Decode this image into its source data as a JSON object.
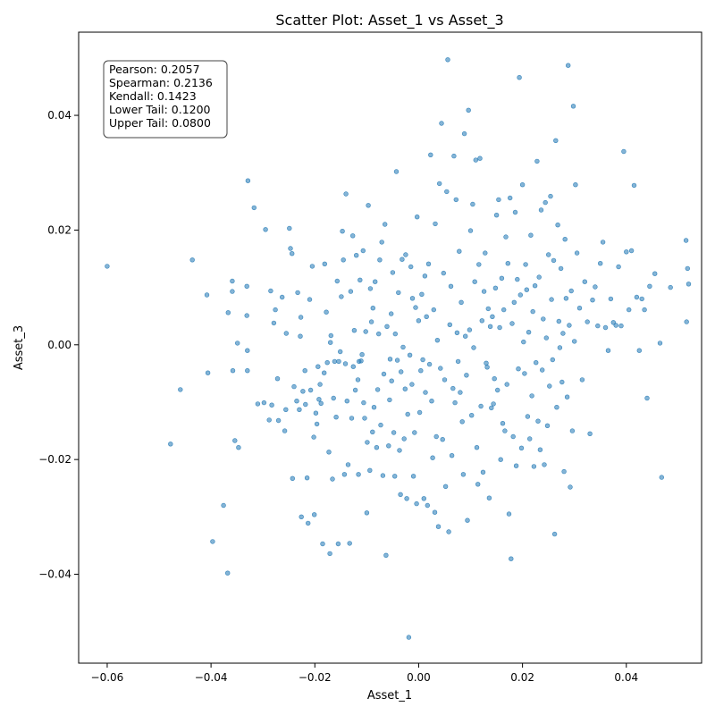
{
  "chart_data": {
    "type": "scatter",
    "title": "Scatter Plot: Asset_1 vs Asset_3",
    "xlabel": "Asset_1",
    "ylabel": "Asset_3",
    "xlim": [
      -0.0655,
      0.0545
    ],
    "ylim": [
      -0.0555,
      0.0545
    ],
    "xticks": [
      -0.06,
      -0.04,
      -0.02,
      0.0,
      0.02,
      0.04
    ],
    "xtick_labels": [
      "−0.06",
      "−0.04",
      "−0.02",
      "0.00",
      "0.02",
      "0.04"
    ],
    "yticks": [
      -0.04,
      -0.02,
      0.0,
      0.02,
      0.04
    ],
    "ytick_labels": [
      "−0.04",
      "−0.02",
      "0.00",
      "0.02",
      "0.04"
    ],
    "grid": false,
    "point_color": "#1f77b4",
    "stats_lines": [
      "Pearson: 0.2057",
      "Spearman: 0.2136",
      "Kendall: 0.1423",
      "Lower Tail: 0.1200",
      "Upper Tail: 0.0800"
    ],
    "points": [
      [
        -0.06,
        0.0137
      ],
      [
        -0.0478,
        -0.0173
      ],
      [
        -0.0459,
        -0.0078
      ],
      [
        -0.0436,
        0.0148
      ],
      [
        -0.0408,
        0.0087
      ],
      [
        -0.0406,
        -0.0049
      ],
      [
        -0.0397,
        -0.0343
      ],
      [
        -0.0376,
        -0.028
      ],
      [
        -0.0368,
        -0.0398
      ],
      [
        -0.0367,
        0.0056
      ],
      [
        -0.0359,
        0.0111
      ],
      [
        -0.0359,
        0.0093
      ],
      [
        -0.0358,
        -0.0045
      ],
      [
        -0.0354,
        -0.0167
      ],
      [
        -0.0349,
        0.0003
      ],
      [
        -0.0347,
        -0.0179
      ],
      [
        -0.033,
        -0.0045
      ],
      [
        -0.0331,
        0.0102
      ],
      [
        -0.0331,
        0.0051
      ],
      [
        -0.0329,
        0.0286
      ],
      [
        -0.033,
        -0.001
      ],
      [
        -0.0317,
        0.0239
      ],
      [
        -0.031,
        -0.0103
      ],
      [
        -0.0298,
        -0.0101
      ],
      [
        -0.0295,
        0.0201
      ],
      [
        -0.0288,
        -0.0131
      ],
      [
        -0.0285,
        0.0094
      ],
      [
        -0.0283,
        -0.0105
      ],
      [
        -0.0279,
        0.0038
      ],
      [
        -0.0276,
        0.0061
      ],
      [
        -0.0272,
        -0.0059
      ],
      [
        -0.027,
        -0.0132
      ],
      [
        -0.0263,
        0.0083
      ],
      [
        -0.0258,
        -0.015
      ],
      [
        -0.0256,
        -0.0113
      ],
      [
        -0.0255,
        0.002
      ],
      [
        -0.0249,
        0.0203
      ],
      [
        -0.0247,
        0.0168
      ],
      [
        -0.0244,
        0.0159
      ],
      [
        -0.0243,
        -0.0233
      ],
      [
        -0.024,
        -0.0073
      ],
      [
        -0.0235,
        -0.0098
      ],
      [
        -0.0233,
        0.0091
      ],
      [
        -0.023,
        -0.0113
      ],
      [
        -0.0228,
        0.0015
      ],
      [
        -0.0227,
        0.0048
      ],
      [
        -0.0226,
        -0.03
      ],
      [
        -0.0223,
        -0.0081
      ],
      [
        -0.0219,
        -0.0045
      ],
      [
        -0.0218,
        -0.0104
      ],
      [
        -0.0215,
        -0.0232
      ],
      [
        -0.0213,
        -0.0311
      ],
      [
        -0.021,
        0.0079
      ],
      [
        -0.0208,
        -0.0079
      ],
      [
        -0.0205,
        0.0137
      ],
      [
        -0.0202,
        -0.0161
      ],
      [
        -0.0201,
        -0.0296
      ],
      [
        -0.0198,
        -0.0119
      ],
      [
        -0.0196,
        -0.0138
      ],
      [
        -0.0194,
        -0.0038
      ],
      [
        -0.0192,
        -0.0095
      ],
      [
        -0.019,
        -0.0069
      ],
      [
        -0.0188,
        -0.0102
      ],
      [
        -0.0185,
        -0.0347
      ],
      [
        -0.0182,
        -0.0049
      ],
      [
        -0.0181,
        0.0141
      ],
      [
        -0.0178,
        0.0057
      ],
      [
        -0.0176,
        -0.0031
      ],
      [
        -0.0173,
        -0.0187
      ],
      [
        -0.0171,
        -0.0364
      ],
      [
        -0.017,
        0.0004
      ],
      [
        -0.0169,
        0.0016
      ],
      [
        -0.0166,
        -0.0234
      ],
      [
        -0.0164,
        -0.0093
      ],
      [
        -0.0162,
        -0.0029
      ],
      [
        -0.0159,
        -0.0126
      ],
      [
        -0.0157,
        0.0111
      ],
      [
        -0.0155,
        -0.0347
      ],
      [
        -0.0154,
        -0.0029
      ],
      [
        -0.0151,
        -0.0012
      ],
      [
        -0.0149,
        0.0084
      ],
      [
        -0.0147,
        0.0198
      ],
      [
        -0.0145,
        0.0148
      ],
      [
        -0.0143,
        -0.0226
      ],
      [
        -0.0141,
        -0.0033
      ],
      [
        -0.014,
        0.0263
      ],
      [
        -0.0138,
        -0.0098
      ],
      [
        -0.0136,
        -0.0209
      ],
      [
        -0.0133,
        -0.0346
      ],
      [
        -0.0131,
        0.0093
      ],
      [
        -0.0129,
        -0.0128
      ],
      [
        -0.0127,
        0.019
      ],
      [
        -0.0126,
        -0.0038
      ],
      [
        -0.0124,
        0.0025
      ],
      [
        -0.0122,
        -0.0079
      ],
      [
        -0.012,
        0.0156
      ],
      [
        -0.0117,
        -0.0061
      ],
      [
        -0.0116,
        -0.0226
      ],
      [
        -0.0115,
        -0.0029
      ],
      [
        -0.0113,
        0.0113
      ],
      [
        -0.0111,
        -0.0028
      ],
      [
        -0.0109,
        -0.0017
      ],
      [
        -0.0107,
        0.0164
      ],
      [
        -0.0106,
        -0.0101
      ],
      [
        -0.0104,
        -0.0128
      ],
      [
        -0.0102,
        0.0023
      ],
      [
        -0.01,
        -0.0293
      ],
      [
        -0.0099,
        -0.017
      ],
      [
        -0.0097,
        0.0243
      ],
      [
        -0.0094,
        -0.0219
      ],
      [
        -0.0093,
        0.0098
      ],
      [
        -0.0091,
        0.004
      ],
      [
        -0.0089,
        -0.0152
      ],
      [
        -0.0088,
        0.0064
      ],
      [
        -0.0086,
        -0.0109
      ],
      [
        -0.0084,
        0.011
      ],
      [
        -0.0081,
        -0.0179
      ],
      [
        -0.0079,
        -0.0078
      ],
      [
        -0.0077,
        0.0019
      ],
      [
        -0.0075,
        0.0148
      ],
      [
        -0.0073,
        -0.014
      ],
      [
        -0.0071,
        0.0179
      ],
      [
        -0.0069,
        -0.0228
      ],
      [
        -0.0067,
        -0.0051
      ],
      [
        -0.0065,
        0.021
      ],
      [
        -0.0063,
        -0.0367
      ],
      [
        -0.0061,
        0.0032
      ],
      [
        -0.0058,
        -0.0176
      ],
      [
        -0.0056,
        -0.0096
      ],
      [
        -0.0055,
        -0.0025
      ],
      [
        -0.0053,
        0.0054
      ],
      [
        -0.0052,
        -0.0063
      ],
      [
        -0.005,
        0.0126
      ],
      [
        -0.0048,
        -0.0153
      ],
      [
        -0.0046,
        -0.0229
      ],
      [
        -0.0045,
        0.0019
      ],
      [
        -0.0043,
        0.0302
      ],
      [
        -0.0041,
        -0.0027
      ],
      [
        -0.0039,
        0.0091
      ],
      [
        -0.0037,
        -0.0184
      ],
      [
        -0.0035,
        -0.0261
      ],
      [
        -0.0034,
        -0.0047
      ],
      [
        -0.0032,
        0.0149
      ],
      [
        -0.003,
        -0.0004
      ],
      [
        -0.0028,
        -0.0164
      ],
      [
        -0.0026,
        -0.0077
      ],
      [
        -0.0025,
        0.0157
      ],
      [
        -0.0023,
        -0.0268
      ],
      [
        -0.0021,
        -0.0121
      ],
      [
        -0.0019,
        -0.051
      ],
      [
        -0.0017,
        -0.0018
      ],
      [
        -0.0015,
        0.0136
      ],
      [
        -0.0013,
        -0.0069
      ],
      [
        -0.0012,
        0.0081
      ],
      [
        -0.001,
        -0.0229
      ],
      [
        -0.0008,
        -0.0153
      ],
      [
        -0.0006,
        0.0065
      ],
      [
        -0.0004,
        -0.0277
      ],
      [
        -0.0003,
        0.0223
      ],
      [
        0.0,
        0.0042
      ],
      [
        0.0002,
        -0.0118
      ],
      [
        0.0004,
        -0.0045
      ],
      [
        0.0006,
        0.0088
      ],
      [
        0.0008,
        -0.0026
      ],
      [
        0.001,
        -0.0268
      ],
      [
        0.0012,
        0.012
      ],
      [
        0.0013,
        -0.0083
      ],
      [
        0.0015,
        0.0049
      ],
      [
        0.0017,
        -0.028
      ],
      [
        0.0019,
        0.0141
      ],
      [
        0.0021,
        -0.0034
      ],
      [
        0.0023,
        0.0331
      ],
      [
        0.0025,
        -0.0098
      ],
      [
        0.0027,
        -0.0197
      ],
      [
        0.0029,
        0.0061
      ],
      [
        0.0031,
        -0.0292
      ],
      [
        0.0032,
        0.0211
      ],
      [
        0.0034,
        -0.016
      ],
      [
        0.0036,
        0.0008
      ],
      [
        0.0038,
        -0.0317
      ],
      [
        0.004,
        0.0281
      ],
      [
        0.0042,
        -0.0041
      ],
      [
        0.0044,
        0.0386
      ],
      [
        0.0046,
        -0.0165
      ],
      [
        0.0048,
        0.0125
      ],
      [
        0.005,
        -0.0061
      ],
      [
        0.0052,
        -0.0247
      ],
      [
        0.0054,
        0.0267
      ],
      [
        0.0056,
        0.0497
      ],
      [
        0.0058,
        -0.0326
      ],
      [
        0.006,
        0.0035
      ],
      [
        0.0062,
        0.0102
      ],
      [
        0.0064,
        -0.0193
      ],
      [
        0.0066,
        -0.0076
      ],
      [
        0.0068,
        0.0329
      ],
      [
        0.007,
        -0.0101
      ],
      [
        0.0072,
        0.0253
      ],
      [
        0.0074,
        0.0021
      ],
      [
        0.0076,
        -0.0029
      ],
      [
        0.0078,
        0.0163
      ],
      [
        0.008,
        -0.0083
      ],
      [
        0.0082,
        0.0074
      ],
      [
        0.0084,
        -0.0134
      ],
      [
        0.0086,
        -0.0226
      ],
      [
        0.0088,
        0.0368
      ],
      [
        0.009,
        0.0015
      ],
      [
        0.0092,
        -0.0053
      ],
      [
        0.0094,
        -0.0306
      ],
      [
        0.0096,
        0.0409
      ],
      [
        0.0098,
        0.0026
      ],
      [
        0.01,
        0.0199
      ],
      [
        0.0102,
        -0.0123
      ],
      [
        0.0104,
        0.0245
      ],
      [
        0.0106,
        -0.0005
      ],
      [
        0.0108,
        0.011
      ],
      [
        0.011,
        0.0322
      ],
      [
        0.0112,
        -0.0179
      ],
      [
        0.0114,
        -0.0243
      ],
      [
        0.0116,
        0.014
      ],
      [
        0.0118,
        0.0325
      ],
      [
        0.012,
        -0.0107
      ],
      [
        0.0122,
        0.0042
      ],
      [
        0.0124,
        -0.0222
      ],
      [
        0.0126,
        0.0093
      ],
      [
        0.0128,
        0.016
      ],
      [
        0.013,
        -0.0032
      ],
      [
        0.0132,
        -0.0039
      ],
      [
        0.0134,
        0.0063
      ],
      [
        0.0136,
        -0.0267
      ],
      [
        0.0138,
        0.0032
      ],
      [
        0.014,
        -0.011
      ],
      [
        0.0142,
        0.0049
      ],
      [
        0.0144,
        -0.0103
      ],
      [
        0.0146,
        -0.0059
      ],
      [
        0.0148,
        0.0099
      ],
      [
        0.015,
        0.0226
      ],
      [
        0.0152,
        -0.0079
      ],
      [
        0.0154,
        0.0253
      ],
      [
        0.0156,
        0.003
      ],
      [
        0.0158,
        -0.02
      ],
      [
        0.016,
        0.0116
      ],
      [
        0.0162,
        -0.0137
      ],
      [
        0.0164,
        0.0061
      ],
      [
        0.0166,
        -0.015
      ],
      [
        0.0168,
        0.0188
      ],
      [
        0.017,
        -0.0069
      ],
      [
        0.0172,
        0.0142
      ],
      [
        0.0174,
        -0.0295
      ],
      [
        0.0176,
        0.0256
      ],
      [
        0.0178,
        -0.0373
      ],
      [
        0.018,
        0.0037
      ],
      [
        0.0182,
        -0.016
      ],
      [
        0.0184,
        0.0074
      ],
      [
        0.0186,
        0.0231
      ],
      [
        0.0188,
        -0.0211
      ],
      [
        0.019,
        0.0114
      ],
      [
        0.0192,
        -0.0042
      ],
      [
        0.0194,
        0.0466
      ],
      [
        0.0196,
        0.0087
      ],
      [
        0.0198,
        -0.018
      ],
      [
        0.02,
        0.0279
      ],
      [
        0.0202,
        0.0005
      ],
      [
        0.0204,
        -0.005
      ],
      [
        0.0206,
        0.014
      ],
      [
        0.0208,
        0.0096
      ],
      [
        0.021,
        -0.0125
      ],
      [
        0.0212,
        0.0022
      ],
      [
        0.0214,
        -0.0164
      ],
      [
        0.0216,
        0.0191
      ],
      [
        0.0218,
        -0.0089
      ],
      [
        0.022,
        0.0058
      ],
      [
        0.0222,
        -0.0212
      ],
      [
        0.0224,
        0.0103
      ],
      [
        0.0226,
        -0.0031
      ],
      [
        0.0228,
        0.032
      ],
      [
        0.023,
        -0.0133
      ],
      [
        0.0232,
        0.0118
      ],
      [
        0.0234,
        -0.0183
      ],
      [
        0.0236,
        0.0235
      ],
      [
        0.0238,
        -0.0044
      ],
      [
        0.024,
        0.0045
      ],
      [
        0.0242,
        -0.0209
      ],
      [
        0.0244,
        0.0248
      ],
      [
        0.0246,
        0.0012
      ],
      [
        0.0248,
        -0.0141
      ],
      [
        0.025,
        0.0157
      ],
      [
        0.0252,
        -0.0072
      ],
      [
        0.0254,
        0.0259
      ],
      [
        0.0256,
        0.0079
      ],
      [
        0.0258,
        -0.0026
      ],
      [
        0.026,
        0.0147
      ],
      [
        0.0262,
        -0.033
      ],
      [
        0.0264,
        0.0356
      ],
      [
        0.0266,
        -0.0109
      ],
      [
        0.0268,
        0.0209
      ],
      [
        0.027,
        0.0041
      ],
      [
        0.0272,
        -0.0005
      ],
      [
        0.0274,
        0.0133
      ],
      [
        0.0276,
        -0.0065
      ],
      [
        0.0278,
        0.002
      ],
      [
        0.028,
        -0.0221
      ],
      [
        0.0282,
        0.0184
      ],
      [
        0.0284,
        0.0081
      ],
      [
        0.0286,
        -0.0091
      ],
      [
        0.0288,
        0.0487
      ],
      [
        0.029,
        0.0034
      ],
      [
        0.0292,
        -0.0248
      ],
      [
        0.0294,
        0.0094
      ],
      [
        0.0296,
        -0.015
      ],
      [
        0.0298,
        0.0416
      ],
      [
        0.03,
        0.0006
      ],
      [
        0.0302,
        0.0279
      ],
      [
        0.0305,
        0.016
      ],
      [
        0.031,
        0.0064
      ],
      [
        0.0315,
        -0.0061
      ],
      [
        0.032,
        0.011
      ],
      [
        0.0325,
        0.004
      ],
      [
        0.033,
        -0.0155
      ],
      [
        0.0335,
        0.0078
      ],
      [
        0.034,
        0.0101
      ],
      [
        0.0345,
        0.0033
      ],
      [
        0.035,
        0.0142
      ],
      [
        0.0355,
        0.0179
      ],
      [
        0.036,
        0.003
      ],
      [
        0.0365,
        -0.001
      ],
      [
        0.037,
        0.008
      ],
      [
        0.0375,
        0.0039
      ],
      [
        0.038,
        0.0034
      ],
      [
        0.0385,
        0.0136
      ],
      [
        0.039,
        0.0033
      ],
      [
        0.0395,
        0.0337
      ],
      [
        0.04,
        0.0162
      ],
      [
        0.0405,
        0.0061
      ],
      [
        0.041,
        0.0164
      ],
      [
        0.0415,
        0.0278
      ],
      [
        0.042,
        0.0083
      ],
      [
        0.0425,
        -0.001
      ],
      [
        0.043,
        0.008
      ],
      [
        0.0435,
        0.0061
      ],
      [
        0.044,
        -0.0093
      ],
      [
        0.0445,
        0.0102
      ],
      [
        0.0455,
        0.0124
      ],
      [
        0.0465,
        0.0003
      ],
      [
        0.0468,
        -0.0231
      ],
      [
        0.0485,
        0.01
      ],
      [
        0.0515,
        0.0182
      ],
      [
        0.0518,
        0.0133
      ],
      [
        0.052,
        0.0106
      ],
      [
        0.0516,
        0.004
      ]
    ]
  }
}
